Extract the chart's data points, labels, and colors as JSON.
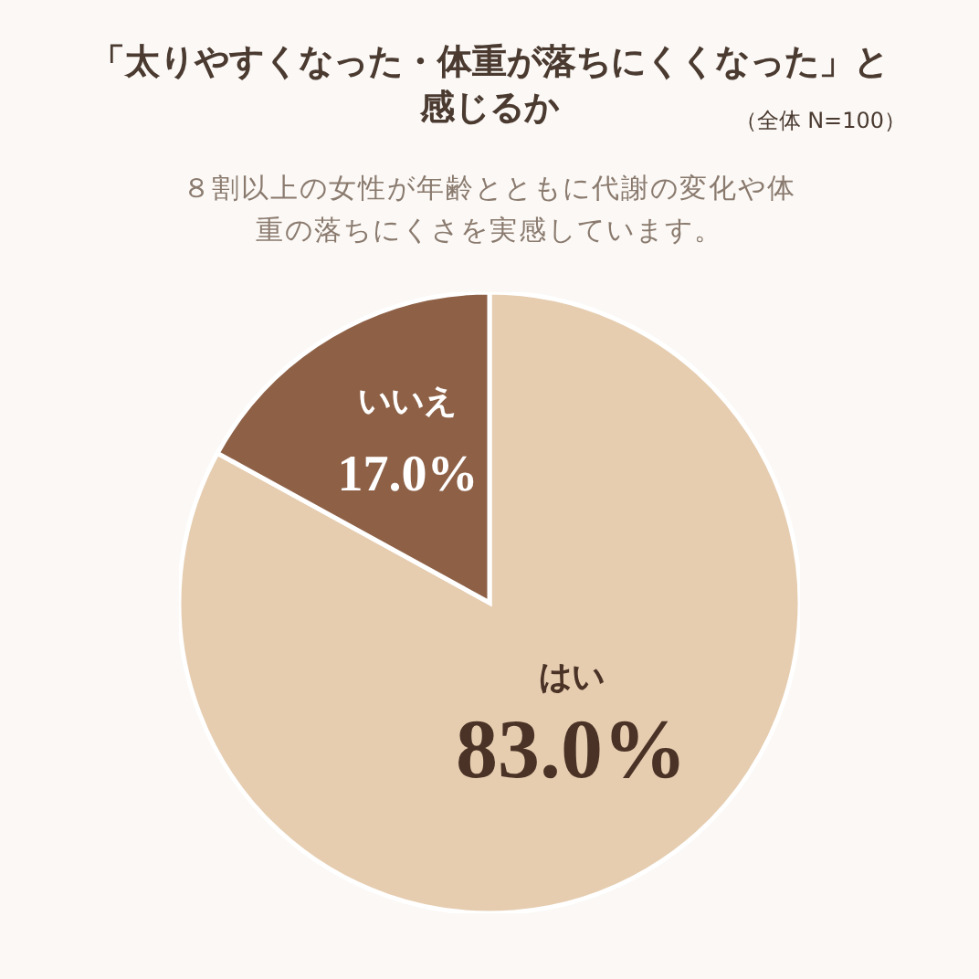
{
  "chart_data": {
    "type": "pie",
    "title": "「太りやすくなった・体重が落ちにくくなった」と感じるか",
    "subtitle": "８割以上の女性が年齢とともに代謝の変化や体重の落ちにくさを実感しています。",
    "annotations": [
      "（全体 N=100）"
    ],
    "categories": [
      "はい",
      "いいえ"
    ],
    "values": [
      83,
      17
    ],
    "colors": [
      "#e6cdb0",
      "#8e6147"
    ],
    "value_labels": [
      "83.0%",
      "17.0%"
    ]
  }
}
